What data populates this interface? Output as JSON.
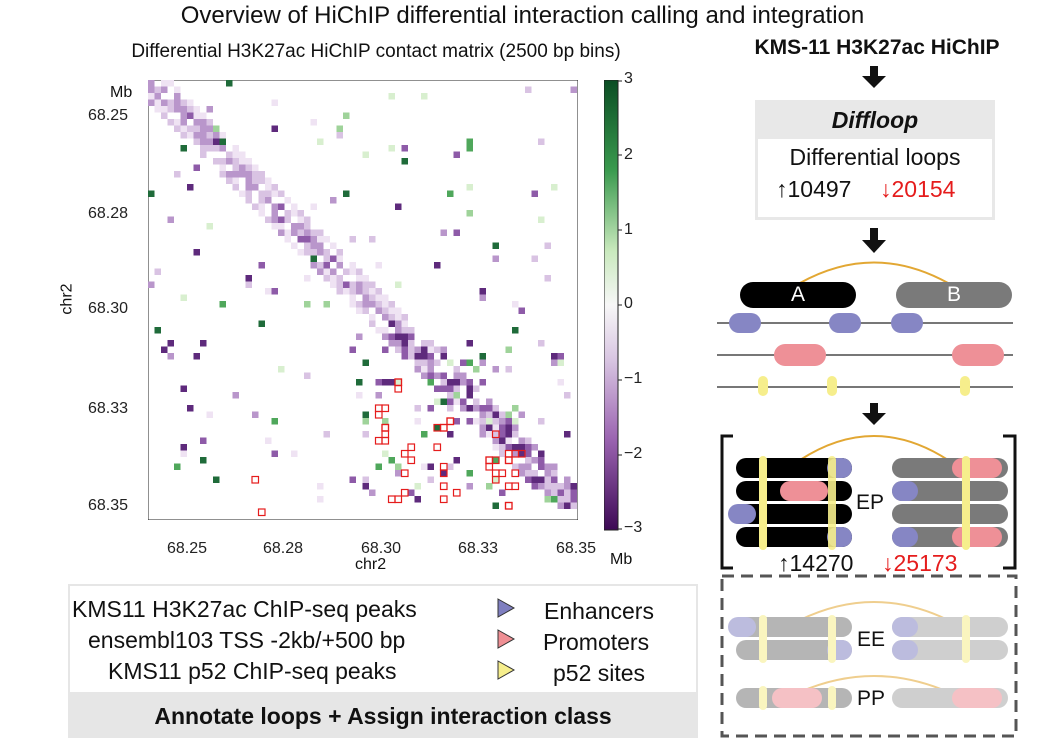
{
  "title": "Overview of HiChIP differential interaction calling and integration",
  "matrix": {
    "title": "Differential H3K27ac HiChIP contact matrix (2500 bp bins)",
    "y_unit": "Mb",
    "y_axis_label": "chr2",
    "x_axis_label": "chr2",
    "x_unit": "Mb",
    "y_ticks": [
      "68.25",
      "68.28",
      "68.30",
      "68.33",
      "68.35"
    ],
    "x_ticks": [
      "68.25",
      "68.28",
      "68.30",
      "68.33",
      "68.35"
    ],
    "colorbar_ticks": [
      "3",
      "2",
      "1",
      "0",
      "−1",
      "−2",
      "−3"
    ],
    "colors": {
      "positive": "#1f6b3a",
      "negative": "#4a1266",
      "neutral": "#ffffff",
      "highlight": "#e51c1c"
    }
  },
  "legend": {
    "rows": [
      {
        "text": "KMS11 H3K27ac ChIP-seq peaks",
        "label": "Enhancers",
        "color": "#7f7fc0"
      },
      {
        "text": "ensembl103 TSS -2kb/+500 bp",
        "label": "Promoters",
        "color": "#ef8f94"
      },
      {
        "text": "KMS11 p52 ChIP-seq peaks",
        "label": "p52 sites",
        "color": "#f6ee8c"
      }
    ],
    "footer": "Annotate loops + Assign interaction class"
  },
  "pipeline": {
    "title": "KMS-11 H3K27ac HiChIP",
    "tool": "Diffloop",
    "result_label": "Differential loops",
    "up_count": "↑10497",
    "down_count": "↓20154",
    "anchor_a": "A",
    "anchor_b": "B",
    "ep_label": "EP",
    "ep_up": "↑14270",
    "ep_down": "↓25173",
    "ee_label": "EE",
    "pp_label": "PP",
    "up_color": "#111111",
    "down_color": "#e51c1c"
  }
}
